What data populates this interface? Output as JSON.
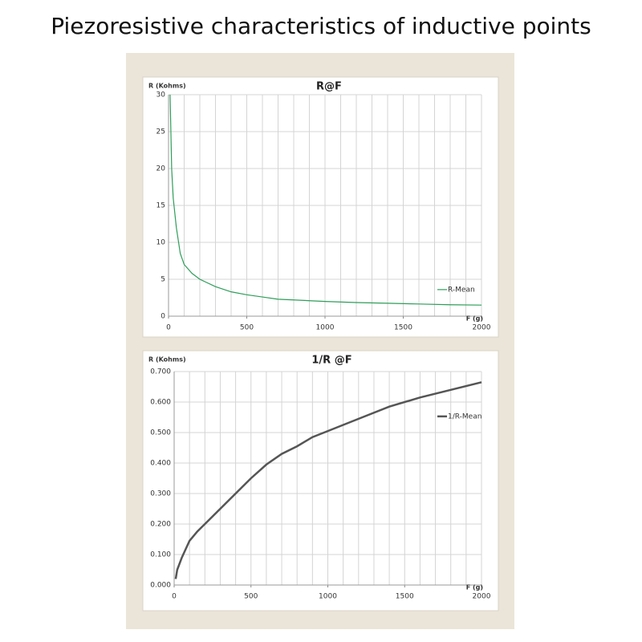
{
  "title": "Piezoresistive characteristics of inductive points",
  "chart_data": [
    {
      "type": "line",
      "title": "R@F",
      "ylabel": "R (Kohms)",
      "xlabel": "F (g)",
      "x": [
        10,
        20,
        30,
        50,
        75,
        100,
        150,
        200,
        300,
        400,
        500,
        600,
        700,
        800,
        1000,
        1200,
        1400,
        1600,
        1800,
        2000
      ],
      "series": [
        {
          "name": "R-Mean",
          "color": "#2e9e5a",
          "values": [
            30,
            20,
            16,
            12,
            8.5,
            7,
            5.8,
            5,
            4,
            3.3,
            2.9,
            2.6,
            2.3,
            2.2,
            2.0,
            1.85,
            1.75,
            1.65,
            1.55,
            1.5
          ]
        }
      ],
      "xlim": [
        0,
        2000
      ],
      "ylim": [
        0,
        30
      ],
      "xticks": [
        0,
        500,
        1000,
        1500,
        2000
      ],
      "yticks": [
        0,
        5,
        10,
        15,
        20,
        25,
        30
      ],
      "xgrid": [
        100,
        200,
        300,
        400,
        500,
        600,
        700,
        800,
        900,
        1000,
        1100,
        1200,
        1300,
        1400,
        1500,
        1600,
        1700,
        1800,
        1900,
        2000
      ],
      "grid": true,
      "legend": "right"
    },
    {
      "type": "line",
      "title": "1/R @F",
      "ylabel": "R (Kohms)",
      "xlabel": "F (g)",
      "x": [
        10,
        20,
        50,
        100,
        150,
        200,
        300,
        400,
        500,
        600,
        700,
        800,
        900,
        1000,
        1200,
        1400,
        1600,
        1800,
        2000
      ],
      "series": [
        {
          "name": "1/R-Mean",
          "color": "#555555",
          "values": [
            0.02,
            0.05,
            0.09,
            0.145,
            0.175,
            0.2,
            0.25,
            0.3,
            0.35,
            0.395,
            0.43,
            0.455,
            0.485,
            0.505,
            0.545,
            0.585,
            0.615,
            0.64,
            0.665
          ]
        }
      ],
      "xlim": [
        0,
        2000
      ],
      "ylim": [
        0,
        0.7
      ],
      "xticks": [
        0,
        500,
        1000,
        1500,
        2000
      ],
      "yticks": [
        {
          "value": 0,
          "label": "0.000"
        },
        {
          "value": 0.1,
          "label": "0.100"
        },
        {
          "value": 0.2,
          "label": "0.200"
        },
        {
          "value": 0.3,
          "label": "0.300"
        },
        {
          "value": 0.4,
          "label": "0.400"
        },
        {
          "value": 0.5,
          "label": "0.500"
        },
        {
          "value": 0.6,
          "label": "0.600"
        },
        {
          "value": 0.7,
          "label": "0.700"
        }
      ],
      "xgrid": [
        100,
        200,
        300,
        400,
        500,
        600,
        700,
        800,
        900,
        1000,
        1100,
        1200,
        1300,
        1400,
        1500,
        1600,
        1700,
        1800,
        1900,
        2000
      ],
      "grid": true,
      "legend": "right"
    }
  ]
}
